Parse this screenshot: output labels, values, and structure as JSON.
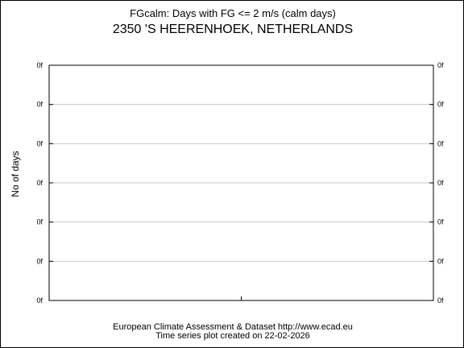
{
  "header": {
    "subtitle": "FGcalm: Days with FG <= 2 m/s (calm days)",
    "title": "2350 'S HEERENHOEK, NETHERLANDS"
  },
  "footer": {
    "line1": "European Climate Assessment & Dataset  http://www.ecad.eu",
    "line2": "Time series plot created on 22-02-2026"
  },
  "chart_data": {
    "type": "line",
    "title": "2350 'S HEERENHOEK, NETHERLANDS",
    "subtitle": "FGcalm: Days with FG <= 2 m/s (calm days)",
    "xlabel": "",
    "ylabel": "No of days",
    "y_tick_labels": [
      "0f",
      "0f",
      "0f",
      "0f",
      "0f",
      "0f",
      "0f"
    ],
    "x": [],
    "series": [],
    "grid": true,
    "legend": "none"
  },
  "colors": {
    "axes": "#000000",
    "grid": "#c8c8c8",
    "background": "#ffffff"
  }
}
